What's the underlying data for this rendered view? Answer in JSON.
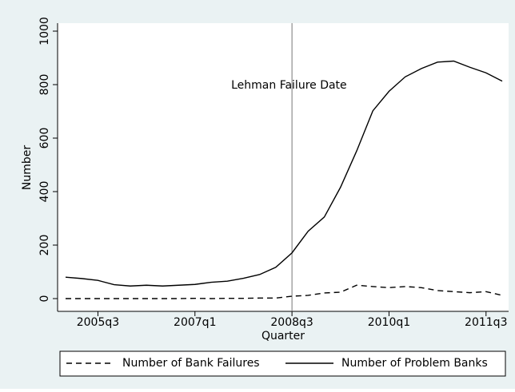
{
  "chart_data": {
    "type": "line",
    "x_label": "Quarter",
    "y_label": "Number",
    "categories": [
      null,
      null,
      "2005q3",
      null,
      null,
      null,
      null,
      null,
      "2007q1",
      null,
      null,
      null,
      null,
      null,
      "2008q3",
      null,
      null,
      null,
      null,
      null,
      "2010q1",
      null,
      null,
      null,
      null,
      null,
      "2011q3",
      null
    ],
    "series": [
      {
        "name": "Number of Bank Failures",
        "color": "#000000",
        "dash": "dashed",
        "values": [
          0,
          0,
          0,
          0,
          0,
          0,
          0,
          0,
          1,
          0,
          1,
          1,
          2,
          2,
          9,
          12,
          21,
          24,
          50,
          45,
          41,
          45,
          41,
          30,
          26,
          22,
          26,
          12
        ]
      },
      {
        "name": "Number of Problem Banks",
        "color": "#000000",
        "dash": "solid",
        "values": [
          80,
          75,
          68,
          52,
          47,
          50,
          47,
          50,
          53,
          61,
          65,
          76,
          90,
          117,
          171,
          252,
          305,
          416,
          552,
          702,
          775,
          829,
          860,
          884,
          888,
          865,
          844,
          813
        ]
      }
    ],
    "ylim": [
      0,
      1000
    ],
    "yticks": [
      0,
      200,
      400,
      600,
      800,
      1000
    ],
    "annotation": {
      "text": "Lehman Failure Date",
      "x": "2008q3"
    },
    "legend": "bottom"
  }
}
